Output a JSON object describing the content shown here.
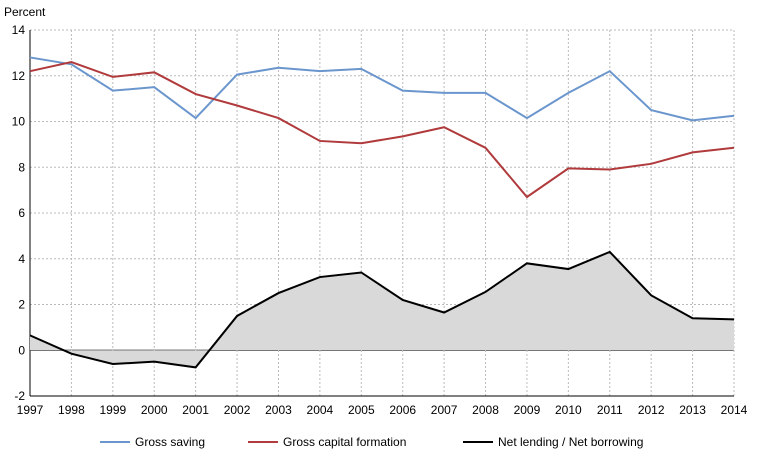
{
  "chart_data": {
    "type": "line",
    "ylabel": "Percent",
    "ylim": [
      -2,
      14
    ],
    "yticks": [
      -2,
      0,
      2,
      4,
      6,
      8,
      10,
      12,
      14
    ],
    "x": [
      "1997",
      "1998",
      "1999",
      "2000",
      "2001",
      "2002",
      "2003",
      "2004",
      "2005",
      "2006",
      "2007",
      "2008",
      "2009",
      "2010",
      "2011",
      "2012",
      "2013",
      "2014"
    ],
    "grid": true,
    "legend_position": "bottom",
    "series": [
      {
        "name": "Gross saving",
        "color": "#6a96cd",
        "values": [
          12.8,
          12.5,
          11.35,
          11.5,
          10.15,
          12.05,
          12.35,
          12.2,
          12.3,
          11.35,
          11.25,
          11.25,
          10.15,
          11.25,
          12.2,
          10.5,
          10.05,
          10.25
        ]
      },
      {
        "name": "Gross capital formation",
        "color": "#b03a3c",
        "values": [
          12.2,
          12.6,
          11.95,
          12.15,
          11.2,
          10.7,
          10.15,
          9.15,
          9.05,
          9.35,
          9.75,
          8.85,
          6.7,
          7.95,
          7.9,
          8.15,
          8.65,
          8.85
        ]
      },
      {
        "name": "Net lending / Net borrowing",
        "color": "#000000",
        "fill": "#d9d9d9",
        "values": [
          0.65,
          -0.15,
          -0.6,
          -0.5,
          -0.75,
          1.5,
          2.5,
          3.2,
          3.4,
          2.2,
          1.65,
          2.55,
          3.8,
          3.55,
          4.3,
          2.4,
          1.4,
          1.35
        ]
      }
    ]
  }
}
